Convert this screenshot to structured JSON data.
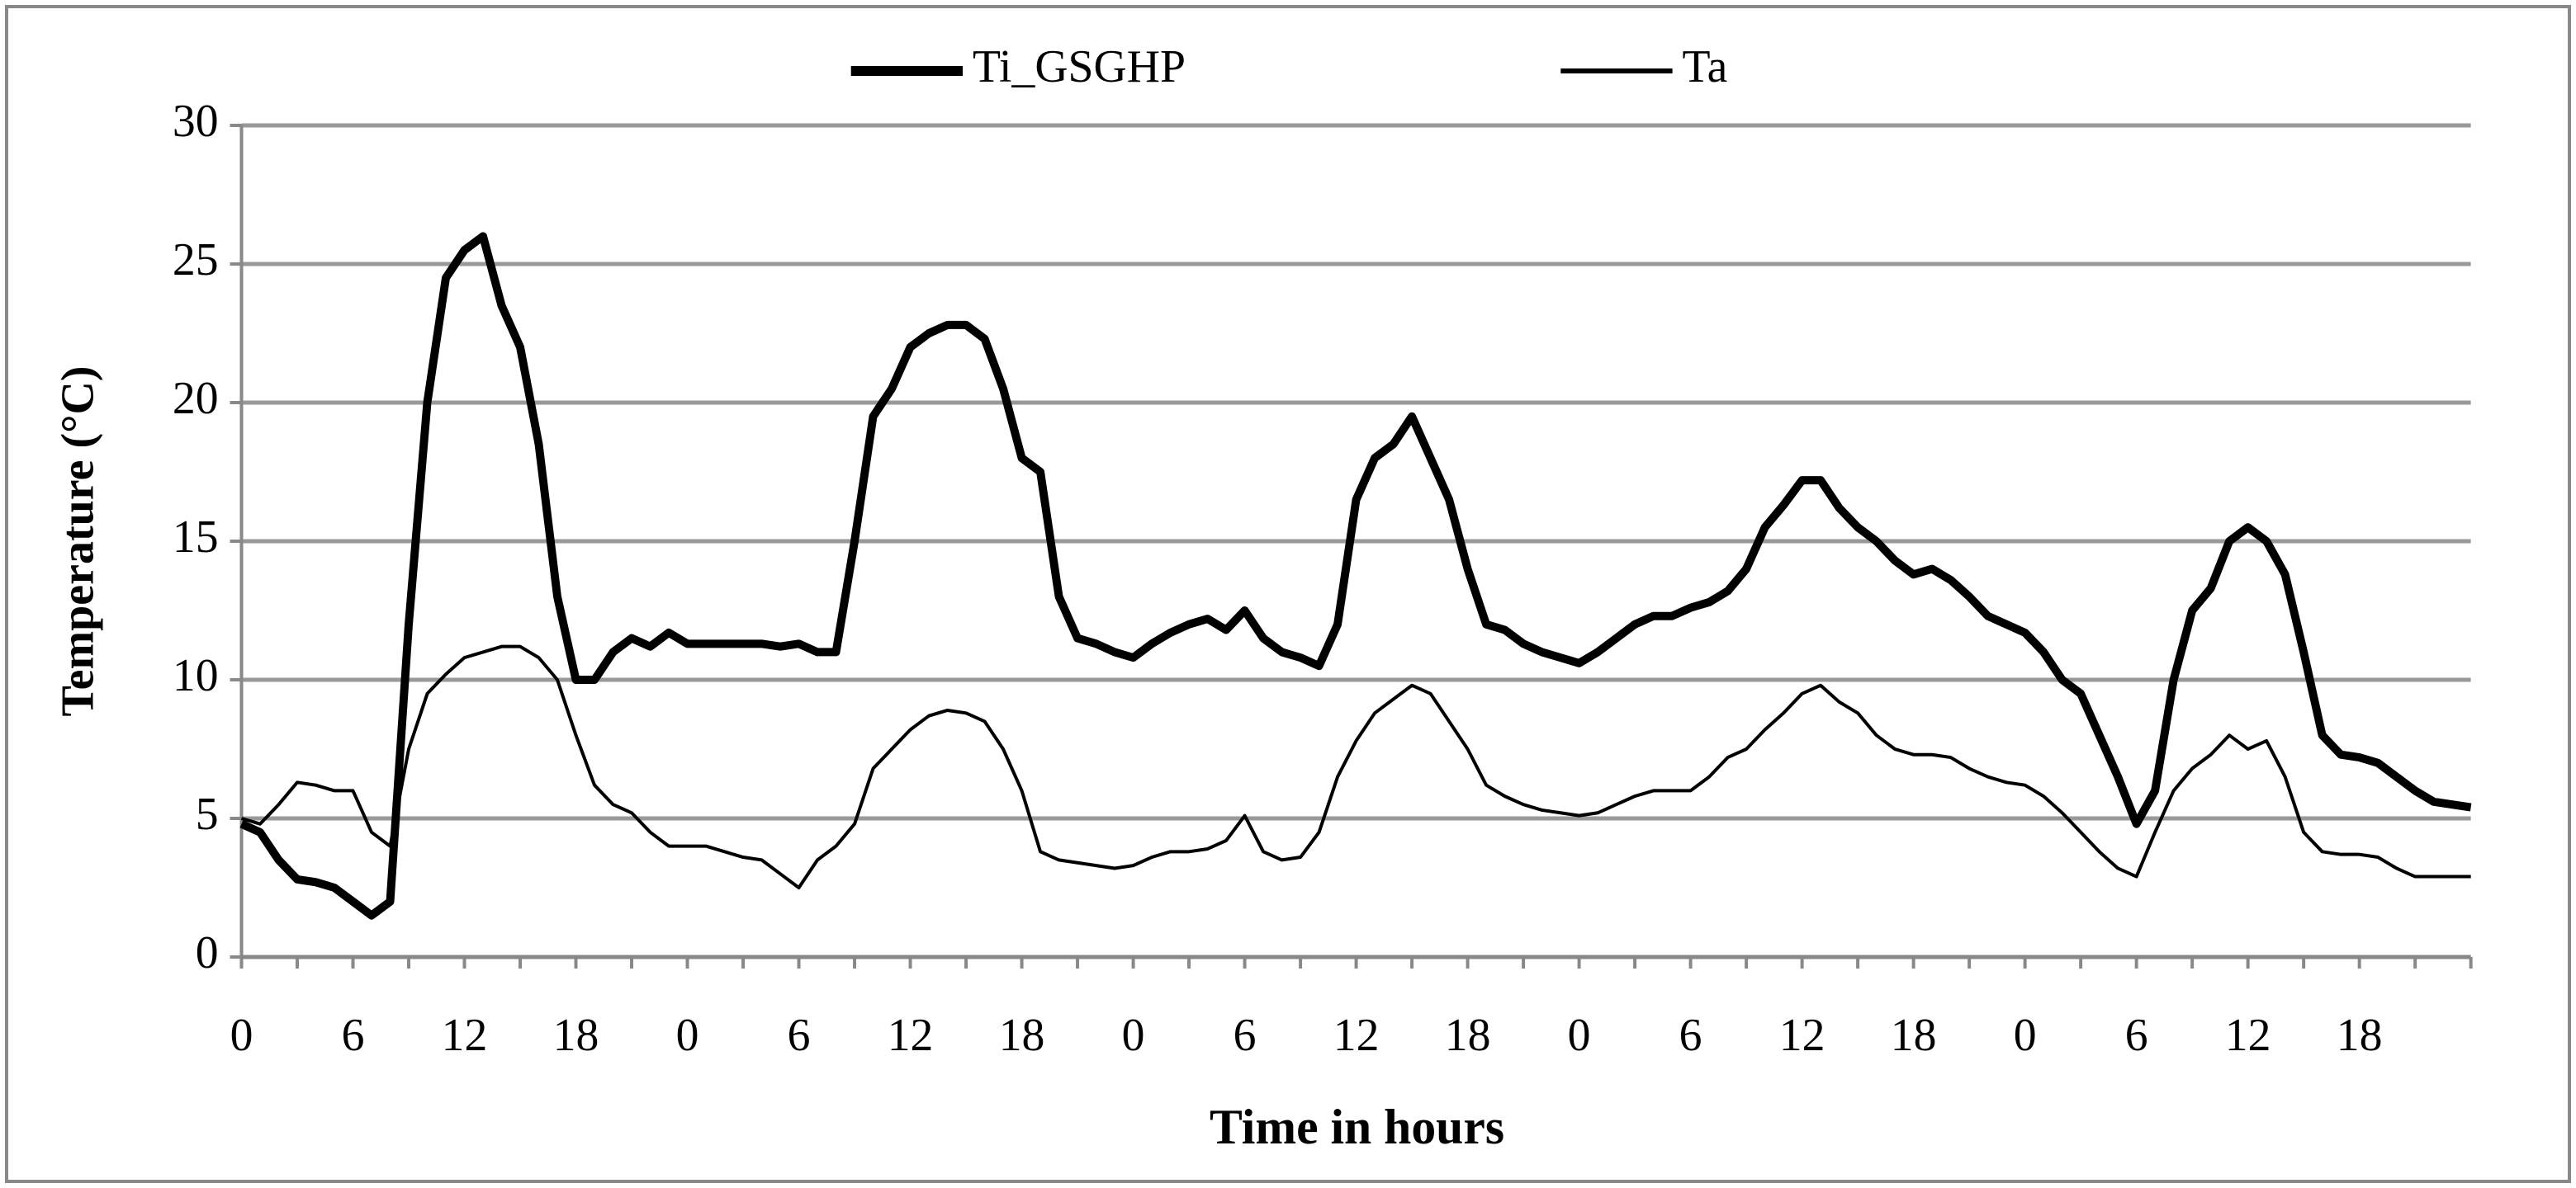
{
  "chart_data": {
    "type": "line",
    "xlabel": "Time in hours",
    "ylabel": "Temperature (°C)",
    "categories": [
      0,
      null,
      null,
      null,
      null,
      null,
      6,
      null,
      null,
      null,
      null,
      null,
      12,
      null,
      null,
      null,
      null,
      null,
      18,
      null,
      null,
      null,
      null,
      null,
      0,
      null,
      null,
      null,
      null,
      null,
      6,
      null,
      null,
      null,
      null,
      null,
      12,
      null,
      null,
      null,
      null,
      null,
      18,
      null,
      null,
      null,
      null,
      null,
      0,
      null,
      null,
      null,
      null,
      null,
      6,
      null,
      null,
      null,
      null,
      null,
      12,
      null,
      null,
      null,
      null,
      null,
      18,
      null,
      null,
      null,
      null,
      null,
      0,
      null,
      null,
      null,
      null,
      null,
      6,
      null,
      null,
      null,
      null,
      null,
      12,
      null,
      null,
      null,
      null,
      null,
      18,
      null,
      null,
      null,
      null,
      null,
      0,
      null,
      null,
      null,
      null,
      null,
      6,
      null,
      null,
      null,
      null,
      null,
      12,
      null,
      null,
      null,
      null,
      null,
      18,
      null,
      null,
      null,
      null,
      null,
      null
    ],
    "series": [
      {
        "name": "Ti_GSGHP",
        "color": "#000000",
        "width": 5,
        "values": [
          4.8,
          4.5,
          3.5,
          2.8,
          2.7,
          2.5,
          2.0,
          1.5,
          2.0,
          12,
          20,
          24.5,
          25.5,
          26,
          23.5,
          22,
          18.5,
          13,
          10,
          10,
          11,
          11.5,
          11.2,
          11.7,
          11.3,
          11.3,
          11.3,
          11.3,
          11.3,
          11.2,
          11.3,
          11,
          11,
          15,
          19.5,
          20.5,
          22,
          22.5,
          22.8,
          22.8,
          22.3,
          20.5,
          18,
          17.5,
          13,
          11.5,
          11.3,
          11,
          10.8,
          11.3,
          11.7,
          12,
          12.2,
          11.8,
          12.5,
          11.5,
          11,
          10.8,
          10.5,
          12,
          16.5,
          18,
          18.5,
          19.5,
          18,
          16.5,
          14,
          12,
          11.8,
          11.3,
          11,
          10.8,
          10.6,
          11,
          11.5,
          12,
          12.3,
          12.3,
          12.6,
          12.8,
          13.2,
          14,
          15.5,
          16.3,
          17.2,
          17.2,
          16.2,
          15.5,
          15,
          14.3,
          13.8,
          14,
          13.6,
          13,
          12.3,
          12,
          11.7,
          11,
          10,
          9.5,
          8,
          6.5,
          4.8,
          6,
          10,
          12.5,
          13.3,
          15,
          15.5,
          15,
          13.8,
          11,
          8,
          7.3,
          7.2,
          7,
          6.5,
          6,
          5.6,
          5.5,
          5.4
        ]
      },
      {
        "name": "Ta",
        "color": "#000000",
        "width": 2,
        "values": [
          5,
          4.8,
          5.5,
          6.3,
          6.2,
          6.0,
          6.0,
          4.5,
          4.0,
          7.5,
          9.5,
          10.2,
          10.8,
          11,
          11.2,
          11.2,
          10.8,
          10,
          8,
          6.2,
          5.5,
          5.2,
          4.5,
          4.0,
          4.0,
          4.0,
          3.8,
          3.6,
          3.5,
          3.0,
          2.5,
          3.5,
          4.0,
          4.8,
          6.8,
          7.5,
          8.2,
          8.7,
          8.9,
          8.8,
          8.5,
          7.5,
          6,
          3.8,
          3.5,
          3.4,
          3.3,
          3.2,
          3.3,
          3.6,
          3.8,
          3.8,
          3.9,
          4.2,
          5.1,
          3.8,
          3.5,
          3.6,
          4.5,
          6.5,
          7.8,
          8.8,
          9.3,
          9.8,
          9.5,
          8.5,
          7.5,
          6.2,
          5.8,
          5.5,
          5.3,
          5.2,
          5.1,
          5.2,
          5.5,
          5.8,
          6.0,
          6.0,
          6.0,
          6.5,
          7.2,
          7.5,
          8.2,
          8.8,
          9.5,
          9.8,
          9.2,
          8.8,
          8.0,
          7.5,
          7.3,
          7.3,
          7.2,
          6.8,
          6.5,
          6.3,
          6.2,
          5.8,
          5.2,
          4.5,
          3.8,
          3.2,
          2.9,
          4.5,
          6.0,
          6.8,
          7.3,
          8.0,
          7.5,
          7.8,
          6.5,
          4.5,
          3.8,
          3.7,
          3.7,
          3.6,
          3.2,
          2.9,
          2.9,
          2.9,
          2.9
        ]
      }
    ],
    "ylim": [
      0,
      30
    ],
    "yticks": [
      0,
      5,
      10,
      15,
      20,
      25,
      30
    ],
    "grid": true,
    "legend": "top"
  }
}
